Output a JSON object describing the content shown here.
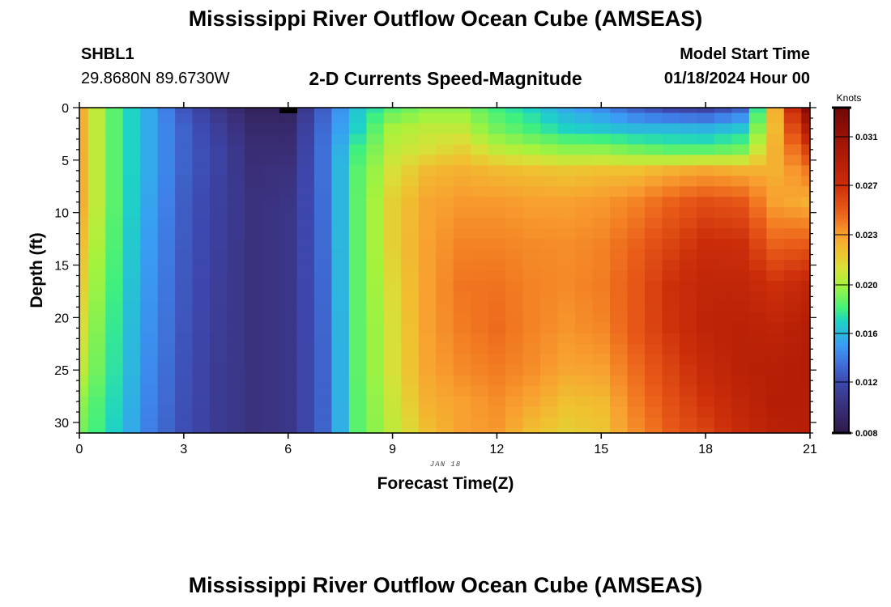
{
  "header": {
    "title": "Mississippi River Outflow Ocean Cube (AMSEAS)",
    "station_id": "SHBL1",
    "coordinates": "29.8680N  89.6730W",
    "subtitle": "2-D Currents Speed-Magnitude",
    "model_start_label": "Model Start Time",
    "model_start_value": "01/18/2024 Hour 00"
  },
  "footer": {
    "title": "Mississippi River Outflow Ocean Cube (AMSEAS)"
  },
  "chart_data": {
    "type": "heatmap",
    "title": "2-D Currents Speed-Magnitude",
    "xlabel": "Forecast Time(Z)",
    "ylabel": "Depth (ft)",
    "date_label": "JAN 18",
    "xlim": [
      0,
      21
    ],
    "ylim": [
      0,
      31
    ],
    "y_inverted": true,
    "x_ticks": [
      "0",
      "3",
      "6",
      "9",
      "12",
      "15",
      "18",
      "21"
    ],
    "y_ticks": [
      "0",
      "5",
      "10",
      "15",
      "20",
      "25",
      "30"
    ],
    "cell_step_hours": 0.5,
    "cell_step_depth_ft": 1,
    "grid_hours": [
      0,
      1,
      2,
      3,
      4,
      5,
      6,
      7,
      8,
      9,
      10,
      11,
      12,
      13,
      14,
      15,
      16,
      17,
      18,
      19,
      20,
      21
    ],
    "grid_depths": [
      0,
      2,
      4,
      6,
      9,
      13,
      17,
      21,
      25,
      28,
      31
    ],
    "values_by_hour": [
      [
        0.0225,
        0.0225,
        0.0225,
        0.0225,
        0.0225,
        0.022,
        0.0215,
        0.021,
        0.0205,
        0.0195,
        0.019
      ],
      [
        0.0185,
        0.0185,
        0.0185,
        0.0185,
        0.0185,
        0.0183,
        0.018,
        0.0177,
        0.0175,
        0.0172,
        0.017
      ],
      [
        0.0155,
        0.0155,
        0.0155,
        0.0155,
        0.0153,
        0.015,
        0.0148,
        0.0146,
        0.0144,
        0.0142,
        0.014
      ],
      [
        0.0125,
        0.013,
        0.013,
        0.013,
        0.0128,
        0.0127,
        0.0126,
        0.0125,
        0.0124,
        0.0123,
        0.0122
      ],
      [
        0.0105,
        0.0112,
        0.0115,
        0.0115,
        0.0114,
        0.0113,
        0.0112,
        0.0111,
        0.011,
        0.011,
        0.011
      ],
      [
        0.0088,
        0.0095,
        0.0098,
        0.01,
        0.0102,
        0.0102,
        0.0102,
        0.0102,
        0.0102,
        0.0102,
        0.0102
      ],
      [
        0.0088,
        0.0095,
        0.0098,
        0.0102,
        0.0105,
        0.0106,
        0.0106,
        0.0106,
        0.0106,
        0.0106,
        0.0106
      ],
      [
        0.0128,
        0.0133,
        0.0135,
        0.0135,
        0.0134,
        0.0133,
        0.0132,
        0.0131,
        0.013,
        0.013,
        0.013
      ],
      [
        0.0165,
        0.017,
        0.018,
        0.0185,
        0.0186,
        0.0186,
        0.0186,
        0.0186,
        0.0186,
        0.0185,
        0.0185
      ],
      [
        0.0185,
        0.02,
        0.0205,
        0.021,
        0.0215,
        0.0215,
        0.0212,
        0.021,
        0.021,
        0.0207,
        0.0205
      ],
      [
        0.0195,
        0.0205,
        0.021,
        0.0222,
        0.0228,
        0.023,
        0.023,
        0.023,
        0.0228,
        0.0225,
        0.022
      ],
      [
        0.0195,
        0.0205,
        0.0215,
        0.0225,
        0.0232,
        0.0238,
        0.0242,
        0.024,
        0.0236,
        0.023,
        0.023
      ],
      [
        0.018,
        0.019,
        0.0205,
        0.0222,
        0.0232,
        0.0238,
        0.0243,
        0.0245,
        0.024,
        0.0235,
        0.0232
      ],
      [
        0.017,
        0.018,
        0.02,
        0.022,
        0.023,
        0.0236,
        0.0238,
        0.0238,
        0.0235,
        0.0228,
        0.022
      ],
      [
        0.0155,
        0.017,
        0.0195,
        0.0218,
        0.023,
        0.0235,
        0.0236,
        0.0233,
        0.0228,
        0.022,
        0.0215
      ],
      [
        0.0145,
        0.0165,
        0.0195,
        0.022,
        0.0232,
        0.0238,
        0.024,
        0.0237,
        0.023,
        0.0222,
        0.0218
      ],
      [
        0.013,
        0.016,
        0.019,
        0.022,
        0.0238,
        0.0248,
        0.0252,
        0.0252,
        0.0245,
        0.024,
        0.0235
      ],
      [
        0.012,
        0.016,
        0.0185,
        0.0225,
        0.0248,
        0.026,
        0.027,
        0.0268,
        0.026,
        0.0255,
        0.025
      ],
      [
        0.0115,
        0.0158,
        0.0185,
        0.0228,
        0.0255,
        0.0272,
        0.028,
        0.0282,
        0.0275,
        0.0268,
        0.026
      ],
      [
        0.013,
        0.0165,
        0.019,
        0.0225,
        0.0252,
        0.027,
        0.028,
        0.0285,
        0.0285,
        0.028,
        0.0275
      ],
      [
        0.0225,
        0.0222,
        0.0225,
        0.0225,
        0.023,
        0.0248,
        0.027,
        0.0282,
        0.0288,
        0.029,
        0.0285
      ],
      [
        0.032,
        0.029,
        0.026,
        0.024,
        0.0225,
        0.025,
        0.028,
        0.029,
        0.0292,
        0.029,
        0.0288
      ]
    ],
    "colorbar": {
      "label": "Knots",
      "ticks": [
        "0.008",
        "0.012",
        "0.016",
        "0.020",
        "0.023",
        "0.027",
        "0.031"
      ],
      "range": [
        0.008,
        0.0334
      ]
    },
    "colormap": [
      [
        0.008,
        "#2e1a48"
      ],
      [
        0.01,
        "#3a2f78"
      ],
      [
        0.012,
        "#3d48ae"
      ],
      [
        0.014,
        "#3f7ee6"
      ],
      [
        0.015,
        "#3a9cf4"
      ],
      [
        0.017,
        "#1ed2c6"
      ],
      [
        0.018,
        "#40f07e"
      ],
      [
        0.02,
        "#a6f23c"
      ],
      [
        0.021,
        "#d8e038"
      ],
      [
        0.022,
        "#f0c030"
      ],
      [
        0.023,
        "#f8a030"
      ],
      [
        0.024,
        "#f27c22"
      ],
      [
        0.025,
        "#e85a18"
      ],
      [
        0.027,
        "#cc2e0a"
      ],
      [
        0.029,
        "#b41e06"
      ],
      [
        0.031,
        "#9a1206"
      ],
      [
        0.0334,
        "#700808"
      ]
    ]
  }
}
